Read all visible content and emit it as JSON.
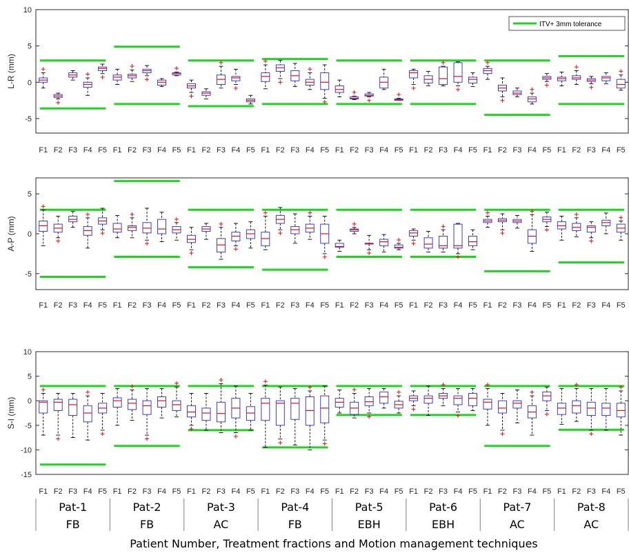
{
  "colors": {
    "box": "#3b3bd6",
    "median": "#e01010",
    "outlier": "#e01010",
    "tolerance": "#1ed41e",
    "axis": "#262626",
    "whisker": "#000000"
  },
  "legend_label": "ITV+ 3mm tolerance",
  "xlabel": "Patient Number, Treatment fractions and Motion management techniques",
  "groups": [
    {
      "patient": "Pat-1",
      "technique": "FB"
    },
    {
      "patient": "Pat-2",
      "technique": "FB"
    },
    {
      "patient": "Pat-3",
      "technique": "AC"
    },
    {
      "patient": "Pat-4",
      "technique": "FB"
    },
    {
      "patient": "Pat-5",
      "technique": "EBH"
    },
    {
      "patient": "Pat-6",
      "technique": "EBH"
    },
    {
      "patient": "Pat-7",
      "technique": "AC"
    },
    {
      "patient": "Pat-8",
      "technique": "AC"
    }
  ],
  "chart_data": [
    {
      "type": "box",
      "ylabel": "L-R (mm)",
      "ylim": [
        -7,
        10
      ],
      "yticks": [
        -5,
        0,
        5,
        10
      ],
      "categories": [
        "F1",
        "F2",
        "F3",
        "F4",
        "F5",
        "F1",
        "F2",
        "F3",
        "F4",
        "F5",
        "F1",
        "F2",
        "F3",
        "F4",
        "F5",
        "F1",
        "F2",
        "F3",
        "F4",
        "F5",
        "F1",
        "F2",
        "F3",
        "F4",
        "F5",
        "F1",
        "F2",
        "F3",
        "F4",
        "F5",
        "F1",
        "F2",
        "F3",
        "F4",
        "F5",
        "F1",
        "F2",
        "F3",
        "F4",
        "F5"
      ],
      "tolerance": [
        [
          3.0,
          -3.6
        ],
        [
          4.9,
          -3.0
        ],
        [
          3.0,
          -3.3
        ],
        [
          3.2,
          -3.0
        ],
        [
          3.0,
          -3.0
        ],
        [
          3.0,
          -3.0
        ],
        [
          3.0,
          -4.5
        ],
        [
          3.6,
          -3.0
        ]
      ],
      "boxes": [
        [
          -0.8,
          0,
          0.3,
          0.6,
          1.3
        ],
        [
          -2.3,
          -2.1,
          -1.9,
          -1.7,
          -1.5
        ],
        [
          0.3,
          0.7,
          1.0,
          1.3,
          1.6
        ],
        [
          -1.8,
          -0.7,
          -0.3,
          0.0,
          0.6
        ],
        [
          1.2,
          1.6,
          1.9,
          2.1,
          2.5
        ],
        [
          -0.3,
          0.3,
          0.7,
          1.0,
          1.8
        ],
        [
          0.1,
          0.6,
          0.9,
          1.1,
          1.7
        ],
        [
          0.9,
          1.3,
          1.6,
          1.8,
          2.3
        ],
        [
          -0.6,
          -0.4,
          0.0,
          0.3,
          0.5
        ],
        [
          0.9,
          1.0,
          1.2,
          1.3,
          1.4
        ],
        [
          -1.4,
          -0.8,
          -0.5,
          -0.2,
          0.3
        ],
        [
          -2.3,
          -1.8,
          -1.5,
          -1.3,
          -0.9
        ],
        [
          -0.8,
          -0.3,
          0.4,
          1.0,
          2.2
        ],
        [
          -0.3,
          0.2,
          0.6,
          0.8,
          1.8
        ],
        [
          -3.0,
          -2.7,
          -2.5,
          -2.3,
          -1.8
        ],
        [
          -0.9,
          0.1,
          0.8,
          1.3,
          2.4
        ],
        [
          0.5,
          1.5,
          2.0,
          2.4,
          3.0
        ],
        [
          -0.6,
          0.2,
          0.9,
          1.6,
          2.6
        ],
        [
          -1.0,
          -0.4,
          0.0,
          0.4,
          1.3
        ],
        [
          -2.2,
          -1.0,
          0.0,
          1.3,
          2.4
        ],
        [
          -2.0,
          -1.4,
          -1.0,
          -0.5,
          0.3
        ],
        [
          -2.4,
          -2.3,
          -2.2,
          -2.0,
          -1.9
        ],
        [
          -2.0,
          -1.9,
          -1.8,
          -1.6,
          -1.4
        ],
        [
          -1.0,
          -0.8,
          0.0,
          0.7,
          1.8
        ],
        [
          -2.5,
          -2.5,
          -2.4,
          -2.3,
          -2.2
        ],
        [
          -0.3,
          0.6,
          1.3,
          1.6,
          1.8
        ],
        [
          -0.5,
          -0.1,
          0.4,
          0.9,
          1.5
        ],
        [
          -0.5,
          -0.3,
          0.5,
          2.1,
          2.2
        ],
        [
          -0.5,
          0.0,
          0.8,
          2.7,
          2.8
        ],
        [
          -0.6,
          -0.1,
          0.4,
          0.7,
          1.3
        ],
        [
          0.4,
          1.2,
          1.6,
          1.9,
          2.2
        ],
        [
          -2.0,
          -1.2,
          -0.8,
          -0.4,
          0.6
        ],
        [
          -2.0,
          -1.7,
          -1.5,
          -1.2,
          -0.8
        ],
        [
          -3.0,
          -2.7,
          -2.3,
          -2.0,
          -1.5
        ],
        [
          0.1,
          0.4,
          0.6,
          0.8,
          1.2
        ],
        [
          -0.5,
          0.2,
          0.5,
          0.7,
          1.4
        ],
        [
          -0.3,
          0.4,
          0.6,
          0.9,
          1.6
        ],
        [
          -0.2,
          0.1,
          0.3,
          0.5,
          0.8
        ],
        [
          -0.2,
          0.2,
          0.6,
          0.8,
          1.3
        ],
        [
          -1.1,
          -0.8,
          -0.3,
          0.4,
          1.0
        ]
      ]
    },
    {
      "type": "box",
      "ylabel": "A-P (mm)",
      "ylim": [
        -7,
        7
      ],
      "yticks": [
        -5,
        0,
        5
      ],
      "categories": [
        "F1",
        "F2",
        "F3",
        "F4",
        "F5",
        "F1",
        "F2",
        "F3",
        "F4",
        "F5",
        "F1",
        "F2",
        "F3",
        "F4",
        "F5",
        "F1",
        "F2",
        "F3",
        "F4",
        "F5",
        "F1",
        "F2",
        "F3",
        "F4",
        "F5",
        "F1",
        "F2",
        "F3",
        "F4",
        "F5",
        "F1",
        "F2",
        "F3",
        "F4",
        "F5",
        "F1",
        "F2",
        "F3",
        "F4",
        "F5"
      ],
      "tolerance": [
        [
          3.0,
          -5.4
        ],
        [
          6.6,
          -2.9
        ],
        [
          3.0,
          -4.2
        ],
        [
          3.0,
          -4.5
        ],
        [
          3.0,
          -2.9
        ],
        [
          3.0,
          -2.9
        ],
        [
          3.0,
          -4.7
        ],
        [
          3.0,
          -3.6
        ]
      ],
      "boxes": [
        [
          -1.5,
          0.3,
          1.0,
          1.6,
          3.0
        ],
        [
          -0.5,
          0.2,
          0.7,
          1.2,
          2.2
        ],
        [
          0.8,
          1.5,
          1.8,
          2.2,
          2.8
        ],
        [
          -1.8,
          -0.2,
          0.4,
          0.9,
          2.0
        ],
        [
          0.5,
          1.2,
          1.6,
          2.0,
          3.2
        ],
        [
          -0.5,
          0.2,
          0.6,
          1.3,
          2.3
        ],
        [
          -0.5,
          0.4,
          0.8,
          1.0,
          2.0
        ],
        [
          -0.8,
          0.1,
          0.7,
          1.4,
          3.2
        ],
        [
          -1.0,
          0.0,
          0.6,
          1.8,
          2.7
        ],
        [
          -0.8,
          0.1,
          0.5,
          0.9,
          1.4
        ],
        [
          -2.0,
          -1.1,
          -0.7,
          -0.2,
          0.8
        ],
        [
          -0.7,
          0.3,
          0.6,
          0.9,
          1.3
        ],
        [
          -3.2,
          -2.3,
          -1.4,
          -0.6,
          0.8
        ],
        [
          -1.5,
          -0.9,
          -0.3,
          0.2,
          1.3
        ],
        [
          -1.8,
          -0.6,
          0.0,
          0.5,
          1.5
        ],
        [
          -2.0,
          -1.5,
          -0.6,
          0.2,
          2.2
        ],
        [
          0.5,
          1.3,
          1.8,
          2.3,
          3.3
        ],
        [
          -1.2,
          0.0,
          0.5,
          0.9,
          2.5
        ],
        [
          -0.7,
          0.2,
          0.7,
          1.2,
          2.2
        ],
        [
          -2.5,
          -1.2,
          0.0,
          1.2,
          2.2
        ],
        [
          -2.2,
          -1.7,
          -1.6,
          -1.2,
          -0.8
        ],
        [
          0.0,
          0.3,
          0.5,
          0.6,
          0.8
        ],
        [
          -2.0,
          -1.3,
          -1.2,
          -1.2,
          -0.2
        ],
        [
          -2.3,
          -1.5,
          -1.0,
          -0.7,
          -0.1
        ],
        [
          -2.0,
          -1.8,
          -1.7,
          -1.4,
          -1.2
        ],
        [
          -0.8,
          -0.3,
          0.1,
          0.4,
          0.6
        ],
        [
          -2.3,
          -1.8,
          -1.3,
          -0.5,
          0.3
        ],
        [
          -2.3,
          -1.8,
          -1.5,
          -0.3,
          0.5
        ],
        [
          -2.5,
          -1.8,
          -1.5,
          1.2,
          1.3
        ],
        [
          -2.0,
          -1.5,
          -1.0,
          -0.3,
          0.5
        ],
        [
          0.8,
          1.4,
          1.6,
          1.8,
          2.2
        ],
        [
          0.5,
          1.5,
          1.7,
          1.9,
          2.5
        ],
        [
          0.7,
          1.4,
          1.6,
          1.8,
          2.3
        ],
        [
          -2.2,
          -1.2,
          -0.3,
          0.5,
          2.4
        ],
        [
          0.9,
          1.5,
          1.8,
          2.1,
          2.7
        ],
        [
          -0.8,
          0.6,
          1.0,
          1.5,
          2.2
        ],
        [
          -0.4,
          0.4,
          0.8,
          1.3,
          2.0
        ],
        [
          -0.5,
          0.2,
          0.8,
          1.0,
          1.5
        ],
        [
          0.0,
          1.0,
          1.4,
          1.7,
          2.6
        ],
        [
          -0.8,
          0.2,
          0.7,
          1.2,
          1.6
        ]
      ]
    },
    {
      "type": "box",
      "ylabel": "S-I (mm)",
      "ylim": [
        -15,
        10
      ],
      "yticks": [
        -15,
        -10,
        -5,
        0,
        5,
        10
      ],
      "categories": [
        "F1",
        "F2",
        "F3",
        "F4",
        "F5",
        "F1",
        "F2",
        "F3",
        "F4",
        "F5",
        "F1",
        "F2",
        "F3",
        "F4",
        "F5",
        "F1",
        "F2",
        "F3",
        "F4",
        "F5",
        "F1",
        "F2",
        "F3",
        "F4",
        "F5",
        "F1",
        "F2",
        "F3",
        "F4",
        "F5",
        "F1",
        "F2",
        "F3",
        "F4",
        "F5",
        "F1",
        "F2",
        "F3",
        "F4",
        "F5"
      ],
      "tolerance": [
        [
          3.0,
          -13.0
        ],
        [
          3.0,
          -9.2
        ],
        [
          3.0,
          -6.0
        ],
        [
          3.0,
          -9.5
        ],
        [
          3.0,
          -2.9
        ],
        [
          3.0,
          -2.9
        ],
        [
          3.0,
          -9.2
        ],
        [
          3.0,
          -5.9
        ]
      ],
      "boxes": [
        [
          -7.0,
          -2.5,
          -0.3,
          0.0,
          1.5
        ],
        [
          -7.0,
          -2.0,
          -0.3,
          0.3,
          1.5
        ],
        [
          -7.5,
          -3.0,
          -0.8,
          0.3,
          1.5
        ],
        [
          -8.0,
          -4.3,
          -2.5,
          -1.0,
          1.0
        ],
        [
          -6.0,
          -2.5,
          -1.5,
          -0.5,
          1.5
        ],
        [
          -5.0,
          -1.3,
          0.0,
          0.6,
          2.5
        ],
        [
          -4.0,
          -1.8,
          -0.5,
          0.3,
          2.2
        ],
        [
          -7.0,
          -2.8,
          -1.0,
          0.0,
          2.5
        ],
        [
          -3.5,
          -1.3,
          0.0,
          0.8,
          2.5
        ],
        [
          -3.3,
          -2.0,
          -0.8,
          0.0,
          2.8
        ],
        [
          -5.0,
          -3.3,
          -2.3,
          -1.0,
          1.5
        ],
        [
          -6.0,
          -4.0,
          -2.5,
          -1.5,
          1.5
        ],
        [
          -6.5,
          -4.3,
          -2.6,
          -0.3,
          3.5
        ],
        [
          -6.5,
          -3.5,
          -1.5,
          0.5,
          3.0
        ],
        [
          -6.0,
          -4.0,
          -2.5,
          -1.2,
          1.5
        ],
        [
          -9.5,
          -4.0,
          -0.5,
          0.5,
          3.2
        ],
        [
          -7.8,
          -5.0,
          -0.5,
          0.0,
          2.8
        ],
        [
          -9.0,
          -3.8,
          -0.5,
          0.5,
          2.5
        ],
        [
          -10.0,
          -5.0,
          -2.0,
          0.8,
          2.0
        ],
        [
          -8.0,
          -4.5,
          -1.5,
          1.0,
          3.0
        ],
        [
          -2.5,
          -1.3,
          -0.3,
          0.5,
          2.2
        ],
        [
          -3.5,
          -2.8,
          -1.5,
          -0.3,
          1.5
        ],
        [
          -2.5,
          -1.0,
          -0.2,
          0.8,
          2.5
        ],
        [
          -1.5,
          -0.5,
          0.8,
          1.8,
          2.5
        ],
        [
          -2.5,
          -1.5,
          -0.8,
          -0.1,
          1.0
        ],
        [
          -1.0,
          0.0,
          0.5,
          1.0,
          2.0
        ],
        [
          -3.0,
          -0.5,
          0.5,
          1.0,
          3.0
        ],
        [
          -1.0,
          0.5,
          1.0,
          1.5,
          2.5
        ],
        [
          -2.3,
          -0.8,
          0.5,
          1.0,
          2.5
        ],
        [
          -2.0,
          -1.0,
          0.5,
          1.5,
          2.5
        ],
        [
          -5.0,
          -1.7,
          -0.3,
          0.3,
          2.5
        ],
        [
          -6.0,
          -2.5,
          -1.5,
          0.0,
          1.5
        ],
        [
          -4.5,
          -1.5,
          -0.5,
          0.0,
          2.2
        ],
        [
          -7.0,
          -3.5,
          -2.3,
          -1.0,
          1.0
        ],
        [
          -2.0,
          0.0,
          1.0,
          1.8,
          2.8
        ],
        [
          -4.8,
          -2.8,
          -1.5,
          -0.5,
          2.5
        ],
        [
          -4.2,
          -2.5,
          -1.0,
          0.0,
          2.5
        ],
        [
          -6.0,
          -3.0,
          -1.5,
          -0.3,
          2.5
        ],
        [
          -6.0,
          -3.0,
          -1.5,
          -0.5,
          2.5
        ],
        [
          -7.0,
          -3.3,
          -2.0,
          -0.5,
          2.0
        ]
      ]
    }
  ]
}
